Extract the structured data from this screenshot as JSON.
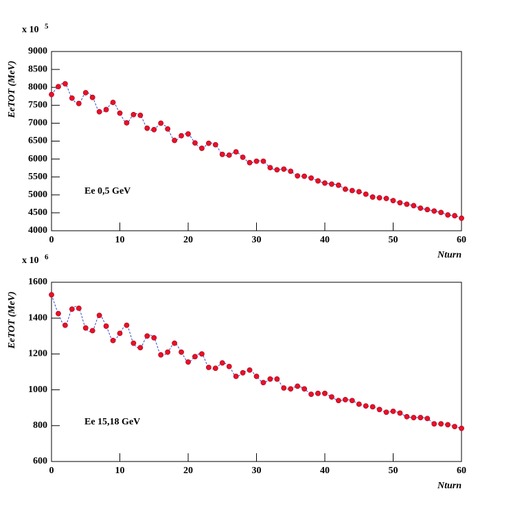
{
  "chart_data": [
    {
      "type": "line",
      "scale_label": "x 10",
      "scale_exponent": "5",
      "y_label": "EeTOT (MeV)",
      "x_label": "Nturn",
      "annotation": "Ee 0,5 GeV",
      "line_color": "#3344cc",
      "marker_color": "#e8102a",
      "xlim": [
        0,
        60
      ],
      "xticks": [
        0,
        10,
        20,
        30,
        40,
        50,
        60
      ],
      "ylim": [
        4000,
        9000
      ],
      "yticks": [
        4000,
        4500,
        5000,
        5500,
        6000,
        6500,
        7000,
        7500,
        8000,
        8500,
        9000
      ],
      "x": [
        0,
        1,
        2,
        3,
        4,
        5,
        6,
        7,
        8,
        9,
        10,
        11,
        12,
        13,
        14,
        15,
        16,
        17,
        18,
        19,
        20,
        21,
        22,
        23,
        24,
        25,
        26,
        27,
        28,
        29,
        30,
        31,
        32,
        33,
        34,
        35,
        36,
        37,
        38,
        39,
        40,
        41,
        42,
        43,
        44,
        45,
        46,
        47,
        48,
        49,
        50,
        51,
        52,
        53,
        54,
        55,
        56,
        57,
        58,
        59,
        60
      ],
      "values": [
        7800,
        8020,
        8100,
        7700,
        7550,
        7850,
        7720,
        7320,
        7380,
        7580,
        7280,
        7010,
        7240,
        7220,
        6860,
        6820,
        7000,
        6840,
        6520,
        6650,
        6700,
        6450,
        6300,
        6440,
        6400,
        6130,
        6110,
        6200,
        6050,
        5900,
        5940,
        5940,
        5760,
        5700,
        5720,
        5660,
        5530,
        5520,
        5470,
        5390,
        5330,
        5300,
        5270,
        5160,
        5120,
        5090,
        5020,
        4940,
        4920,
        4900,
        4840,
        4780,
        4740,
        4700,
        4630,
        4590,
        4550,
        4510,
        4440,
        4420,
        4350
      ]
    },
    {
      "type": "line",
      "scale_label": "x 10",
      "scale_exponent": "6",
      "y_label": "EeTOT (MeV)",
      "x_label": "Nturn",
      "annotation": "Ee 15,18 GeV",
      "line_color": "#3344cc",
      "marker_color": "#e8102a",
      "xlim": [
        0,
        60
      ],
      "xticks": [
        0,
        10,
        20,
        30,
        40,
        50,
        60
      ],
      "ylim": [
        600,
        1600
      ],
      "yticks": [
        600,
        800,
        1000,
        1200,
        1400,
        1600
      ],
      "x": [
        0,
        1,
        2,
        3,
        4,
        5,
        6,
        7,
        8,
        9,
        10,
        11,
        12,
        13,
        14,
        15,
        16,
        17,
        18,
        19,
        20,
        21,
        22,
        23,
        24,
        25,
        26,
        27,
        28,
        29,
        30,
        31,
        32,
        33,
        34,
        35,
        36,
        37,
        38,
        39,
        40,
        41,
        42,
        43,
        44,
        45,
        46,
        47,
        48,
        49,
        50,
        51,
        52,
        53,
        54,
        55,
        56,
        57,
        58,
        59,
        60
      ],
      "values": [
        1530,
        1425,
        1360,
        1450,
        1455,
        1345,
        1330,
        1415,
        1355,
        1275,
        1315,
        1360,
        1260,
        1235,
        1300,
        1290,
        1195,
        1210,
        1260,
        1210,
        1155,
        1185,
        1200,
        1125,
        1120,
        1150,
        1130,
        1075,
        1095,
        1110,
        1075,
        1040,
        1060,
        1060,
        1010,
        1005,
        1020,
        1005,
        975,
        980,
        980,
        960,
        940,
        945,
        940,
        920,
        910,
        905,
        890,
        875,
        880,
        870,
        850,
        845,
        845,
        840,
        810,
        810,
        805,
        795,
        785
      ]
    }
  ]
}
